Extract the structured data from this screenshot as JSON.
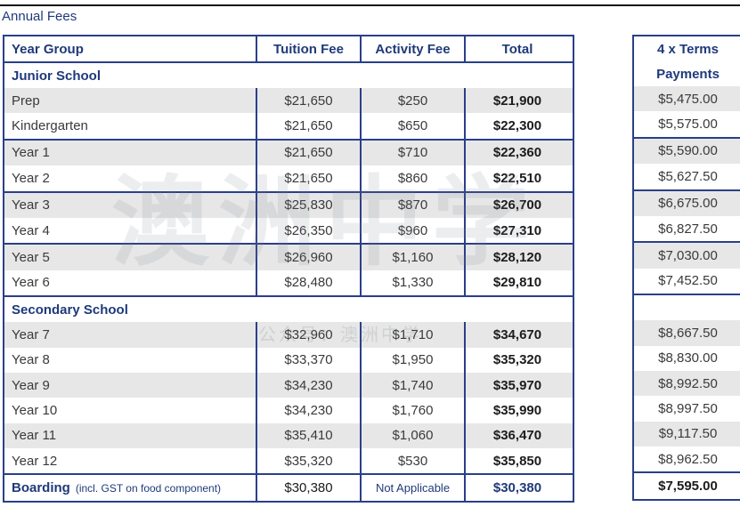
{
  "caption": "Annual Fees",
  "headers": {
    "year_group": "Year Group",
    "tuition_fee": "Tuition Fee",
    "activity_fee": "Activity Fee",
    "total": "Total",
    "terms_line1": "4 x Terms",
    "terms_line2": "Payments"
  },
  "junior_title": "Junior School",
  "junior": [
    {
      "name": "Prep",
      "tuition": "$21,650",
      "activity": "$250",
      "total": "$21,900",
      "term": "$5,475.00"
    },
    {
      "name": "Kindergarten",
      "tuition": "$21,650",
      "activity": "$650",
      "total": "$22,300",
      "term": "$5,575.00"
    },
    {
      "name": "Year 1",
      "tuition": "$21,650",
      "activity": "$710",
      "total": "$22,360",
      "term": "$5,590.00"
    },
    {
      "name": "Year 2",
      "tuition": "$21,650",
      "activity": "$860",
      "total": "$22,510",
      "term": "$5,627.50"
    },
    {
      "name": "Year 3",
      "tuition": "$25,830",
      "activity": "$870",
      "total": "$26,700",
      "term": "$6,675.00"
    },
    {
      "name": "Year 4",
      "tuition": "$26,350",
      "activity": "$960",
      "total": "$27,310",
      "term": "$6,827.50"
    },
    {
      "name": "Year 5",
      "tuition": "$26,960",
      "activity": "$1,160",
      "total": "$28,120",
      "term": "$7,030.00"
    },
    {
      "name": "Year 6",
      "tuition": "$28,480",
      "activity": "$1,330",
      "total": "$29,810",
      "term": "$7,452.50"
    }
  ],
  "secondary_title": "Secondary School",
  "secondary": [
    {
      "name": "Year 7",
      "tuition": "$32,960",
      "activity": "$1,710",
      "total": "$34,670",
      "term": "$8,667.50"
    },
    {
      "name": "Year 8",
      "tuition": "$33,370",
      "activity": "$1,950",
      "total": "$35,320",
      "term": "$8,830.00"
    },
    {
      "name": "Year 9",
      "tuition": "$34,230",
      "activity": "$1,740",
      "total": "$35,970",
      "term": "$8,992.50"
    },
    {
      "name": "Year 10",
      "tuition": "$34,230",
      "activity": "$1,760",
      "total": "$35,990",
      "term": "$8,997.50"
    },
    {
      "name": "Year 11",
      "tuition": "$35,410",
      "activity": "$1,060",
      "total": "$36,470",
      "term": "$9,117.50"
    },
    {
      "name": "Year 12",
      "tuition": "$35,320",
      "activity": "$530",
      "total": "$35,850",
      "term": "$8,962.50"
    }
  ],
  "boarding": {
    "label": "Boarding",
    "note": "(incl. GST on food component)",
    "tuition": "$30,380",
    "activity": "Not Applicable",
    "total": "$30,380",
    "term": "$7,595.00"
  },
  "watermark_text": "澳洲中学",
  "watermark_sub": "公众号：澳洲中学"
}
